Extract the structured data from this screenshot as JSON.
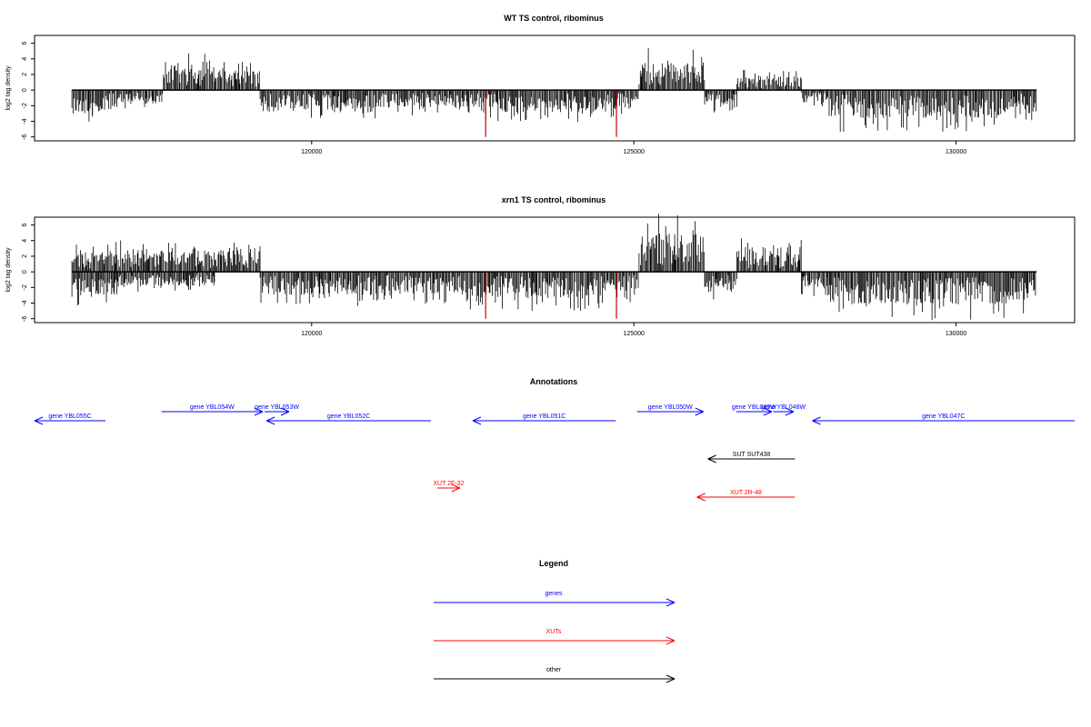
{
  "chart_data": [
    {
      "type": "bar",
      "title": "WT TS control, ribominus",
      "ylabel": "log2 tag density",
      "xlabel": "",
      "xlim": [
        115700,
        131840
      ],
      "ylim": [
        -6.5,
        7
      ],
      "yticks": [
        6,
        4,
        2,
        0,
        -2,
        -4,
        -6
      ],
      "xticks": [
        120000,
        125000,
        130000
      ],
      "xtick_labels": [
        "120000",
        "125000",
        "130000"
      ],
      "colors": {
        "normal": "#000000",
        "highlight": "#cc0000"
      },
      "segments": [
        {
          "from": 116280,
          "to": 116600,
          "sign": -1,
          "mag": 3.0
        },
        {
          "from": 116600,
          "to": 117000,
          "sign": -1,
          "mag": 2.8
        },
        {
          "from": 117000,
          "to": 117700,
          "sign": -1,
          "mag": 1.8
        },
        {
          "from": 117700,
          "to": 118500,
          "sign": 1,
          "mag": 3.2
        },
        {
          "from": 118500,
          "to": 119200,
          "sign": 1,
          "mag": 2.6
        },
        {
          "from": 119200,
          "to": 121000,
          "sign": -1,
          "mag": 2.8
        },
        {
          "from": 121000,
          "to": 122600,
          "sign": -1,
          "mag": 2.2
        },
        {
          "from": 122600,
          "to": 124600,
          "sign": -1,
          "mag": 2.8
        },
        {
          "from": 124600,
          "to": 125080,
          "sign": -1,
          "mag": 2.5
        },
        {
          "from": 125080,
          "to": 126100,
          "sign": 1,
          "mag": 3.6
        },
        {
          "from": 126100,
          "to": 126600,
          "sign": -1,
          "mag": 2.0
        },
        {
          "from": 126600,
          "to": 127600,
          "sign": 1,
          "mag": 1.8
        },
        {
          "from": 127600,
          "to": 128000,
          "sign": -1,
          "mag": 1.6
        },
        {
          "from": 128000,
          "to": 130800,
          "sign": -1,
          "mag": 3.6
        },
        {
          "from": 130800,
          "to": 131250,
          "sign": -1,
          "mag": 3.0
        }
      ],
      "highlights": [
        {
          "x": 122700,
          "y": -6.0
        },
        {
          "x": 124730,
          "y": -6.0
        }
      ]
    },
    {
      "type": "bar",
      "title": "xrn1 TS control, ribominus",
      "ylabel": "log2 tag density",
      "xlabel": "",
      "xlim": [
        115700,
        131840
      ],
      "ylim": [
        -6.5,
        7
      ],
      "yticks": [
        6,
        4,
        2,
        0,
        -2,
        -4,
        -6
      ],
      "xticks": [
        120000,
        125000,
        130000
      ],
      "xtick_labels": [
        "120000",
        "125000",
        "130000"
      ],
      "colors": {
        "normal": "#000000",
        "highlight": "#cc0000"
      },
      "segments": [
        {
          "from": 116280,
          "to": 117000,
          "sign": 1,
          "mag": 2.6
        },
        {
          "from": 116280,
          "to": 117000,
          "sign": -1,
          "mag": 3.0
        },
        {
          "from": 117000,
          "to": 118500,
          "sign": 1,
          "mag": 3.0
        },
        {
          "from": 117000,
          "to": 118500,
          "sign": -1,
          "mag": 1.8
        },
        {
          "from": 118500,
          "to": 119200,
          "sign": 1,
          "mag": 3.2
        },
        {
          "from": 119200,
          "to": 121000,
          "sign": -1,
          "mag": 3.0
        },
        {
          "from": 121000,
          "to": 122300,
          "sign": -1,
          "mag": 2.8
        },
        {
          "from": 122300,
          "to": 124600,
          "sign": -1,
          "mag": 3.4
        },
        {
          "from": 124600,
          "to": 125080,
          "sign": -1,
          "mag": 2.6
        },
        {
          "from": 125080,
          "to": 126100,
          "sign": 1,
          "mag": 5.0
        },
        {
          "from": 126100,
          "to": 126600,
          "sign": -1,
          "mag": 2.6
        },
        {
          "from": 126600,
          "to": 127600,
          "sign": 1,
          "mag": 3.2
        },
        {
          "from": 127600,
          "to": 128000,
          "sign": -1,
          "mag": 2.2
        },
        {
          "from": 128000,
          "to": 130800,
          "sign": -1,
          "mag": 4.2
        },
        {
          "from": 130800,
          "to": 131250,
          "sign": -1,
          "mag": 3.6
        }
      ],
      "highlights": [
        {
          "x": 122700,
          "y": -6.0
        },
        {
          "x": 124730,
          "y": -6.0
        }
      ]
    }
  ],
  "annotations": {
    "title": "Annotations",
    "xlim": [
      115700,
      131840
    ],
    "colors": {
      "gene": "#0000ff",
      "xut": "#ff0000",
      "other": "#000000"
    },
    "features": [
      {
        "label": "gene YBL055C",
        "from": 116800,
        "to": 115700,
        "kind": "gene",
        "row": 2
      },
      {
        "label": "gene YBL054W",
        "from": 117670,
        "to": 119240,
        "kind": "gene",
        "row": 1
      },
      {
        "label": "gene YBL053W",
        "from": 119270,
        "to": 119650,
        "kind": "gene",
        "row": 1
      },
      {
        "label": "gene YBL052C",
        "from": 121850,
        "to": 119300,
        "kind": "gene",
        "row": 2
      },
      {
        "label": "gene YBL051C",
        "from": 124720,
        "to": 122500,
        "kind": "gene",
        "row": 2
      },
      {
        "label": "gene YBL050W",
        "from": 125050,
        "to": 126080,
        "kind": "gene",
        "row": 1
      },
      {
        "label": "gene YBL049W",
        "from": 126590,
        "to": 127140,
        "kind": "gene",
        "row": 1
      },
      {
        "label": "gene YBL048W",
        "from": 127160,
        "to": 127480,
        "kind": "gene",
        "row": 1
      },
      {
        "label": "gene YBL047C",
        "from": 131840,
        "to": 127770,
        "kind": "gene",
        "row": 2
      },
      {
        "label": "SUT SUT438",
        "from": 127500,
        "to": 126150,
        "kind": "other",
        "row": 3
      },
      {
        "label": "XUT 2F-32",
        "from": 121950,
        "to": 122300,
        "kind": "xut",
        "row": 4
      },
      {
        "label": "XUT 2R-48",
        "from": 127500,
        "to": 125980,
        "kind": "xut",
        "row": 5
      }
    ]
  },
  "legend": {
    "title": "Legend",
    "items": [
      {
        "label": "genes",
        "kind": "gene"
      },
      {
        "label": "XUTs",
        "kind": "xut"
      },
      {
        "label": "other",
        "kind": "other"
      }
    ]
  }
}
